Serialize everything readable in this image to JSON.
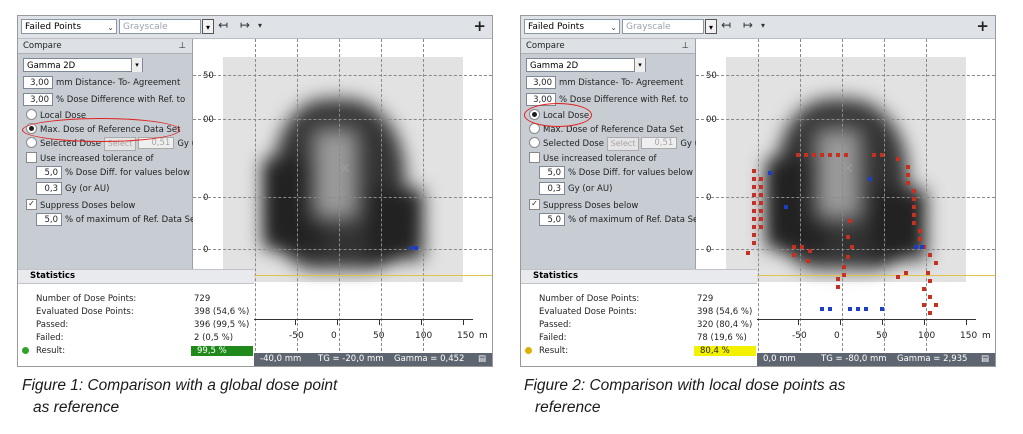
{
  "toolbar": {
    "type_select": "Failed Points",
    "color_select": "Grayscale",
    "add": "+"
  },
  "compare": {
    "header": "Compare",
    "pin": "ᵽ",
    "method": "Gamma 2D"
  },
  "panels": [
    {
      "params": {
        "dta_value": "3,00",
        "dta_label": "mm Distance- To- Agreement",
        "dd_value": "3,00",
        "dd_label": "% Dose Difference with Ref. to",
        "local_label": "Local Dose",
        "max_label": "Max. Dose of Reference Data Set",
        "selected_label": "Selected Dose",
        "select_btn": "Select",
        "selected_value": "0,51",
        "unit_label": "Gy (or AU)",
        "use_tol_label": "Use increased tolerance of",
        "tol_pct": "5,0",
        "tol_pct_label": "% Dose Diff. for values below",
        "tol_gy": "0,3",
        "tol_gy_label": "Gy (or AU)",
        "suppress_label": "Suppress Doses below",
        "suppress_value": "5,0",
        "suppress_unit": "% of maximum of Ref. Data Set"
      },
      "stats": {
        "header": "Statistics",
        "rows": [
          {
            "k": "Number of Dose Points:",
            "v": "729"
          },
          {
            "k": "Evaluated Dose Points:",
            "v": "398 (54,6 %)"
          },
          {
            "k": "Passed:",
            "v": "396 (99,5 %)"
          },
          {
            "k": "Failed:",
            "v": "2 (0,5 %)"
          }
        ],
        "result_label": "Result:",
        "result_value": "99,5 %",
        "result_color": "#1f8a19",
        "dot_color": "#2ea32a"
      },
      "axis": {
        "ticks": [
          "0",
          "-50",
          "0",
          "50",
          "100",
          "150"
        ],
        "unit": "m",
        "y": [
          "50",
          "00",
          "0",
          "0"
        ]
      },
      "status": {
        "a": "-40,0 mm",
        "b": "TG = -20,0 mm",
        "c": "Gamma = 0,452"
      }
    },
    {
      "params": {
        "dta_value": "3,00",
        "dta_label": "mm Distance- To- Agreement",
        "dd_value": "3,00",
        "dd_label": "% Dose Difference with Ref. to",
        "local_label": "Local Dose",
        "max_label": "Max. Dose of Reference Data Set",
        "selected_label": "Selected Dose",
        "select_btn": "Select",
        "selected_value": "0,51",
        "unit_label": "Gy (or AU)",
        "use_tol_label": "Use increased tolerance of",
        "tol_pct": "5,0",
        "tol_pct_label": "% Dose Diff. for values below",
        "tol_gy": "0,3",
        "tol_gy_label": "Gy (or AU)",
        "suppress_label": "Suppress Doses below",
        "suppress_value": "5,0",
        "suppress_unit": "% of maximum of Ref. Data Set"
      },
      "stats": {
        "header": "Statistics",
        "rows": [
          {
            "k": "Number of Dose Points:",
            "v": "729"
          },
          {
            "k": "Evaluated Dose Points:",
            "v": "398 (54,6 %)"
          },
          {
            "k": "Passed:",
            "v": "320 (80,4 %)"
          },
          {
            "k": "Failed:",
            "v": "78 (19,6 %)"
          }
        ],
        "result_label": "Result:",
        "result_value": "80,4 %",
        "result_color": "#f3f000",
        "dot_color": "#e0b000"
      },
      "axis": {
        "ticks": [
          "-50",
          "0",
          "50",
          "100",
          "150"
        ],
        "unit": "m",
        "y": [
          "50",
          "00",
          "0",
          "0"
        ]
      },
      "status": {
        "a": "0,0 mm",
        "b": "TG = -80,0 mm",
        "c": "Gamma = 2,935"
      }
    }
  ],
  "captions": [
    {
      "line1": "Figure 1: Comparison with a global dose point",
      "line2": "as reference"
    },
    {
      "line1": "Figure 2: Comparison with local dose points as",
      "line2": "reference"
    }
  ]
}
